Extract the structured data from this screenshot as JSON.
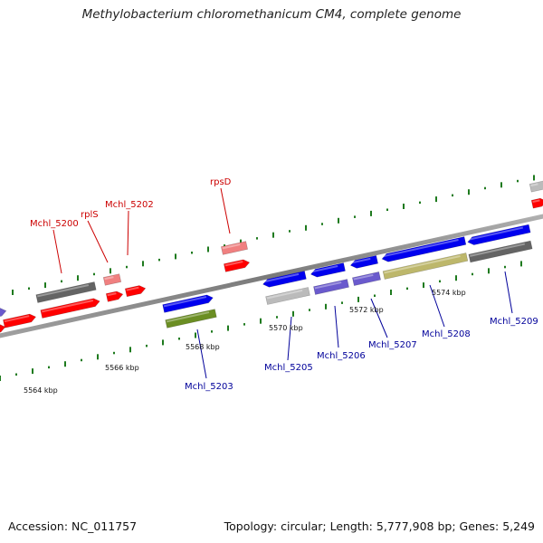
{
  "header": {
    "title": "Methylobacterium chloromethanicum CM4, complete genome"
  },
  "footer": {
    "accession": "Accession: NC_011757",
    "summary": "Topology: circular; Length: 5,777,908 bp; Genes: 5,249"
  },
  "scale_labels": [
    "5564 kbp",
    "5566 kbp",
    "5568 kbp",
    "5570 kbp",
    "5572 kbp",
    "5574 kbp"
  ],
  "top_strand_labels": [
    "Mchl_5200",
    "rplS",
    "Mchl_5202",
    "rpsD"
  ],
  "bottom_strand_labels": [
    "Mchl_5203",
    "Mchl_5205",
    "Mchl_5206",
    "Mchl_5207",
    "Mchl_5208",
    "Mchl_5209"
  ],
  "colors": {
    "top_label": "#cc0000",
    "bottom_label": "#00009a",
    "red_gene": "#ff0000",
    "pink_gene": "#f08080",
    "grey_gene": "#646464",
    "blue_gene": "#0000ee",
    "purple_gene": "#6a5acd",
    "olive_gene": "#6b8e23",
    "khaki_gene": "#bdb76b",
    "lightgrey_gene": "#bbbbbb",
    "backbone": "#888888",
    "tick": "#1e7a1e"
  }
}
